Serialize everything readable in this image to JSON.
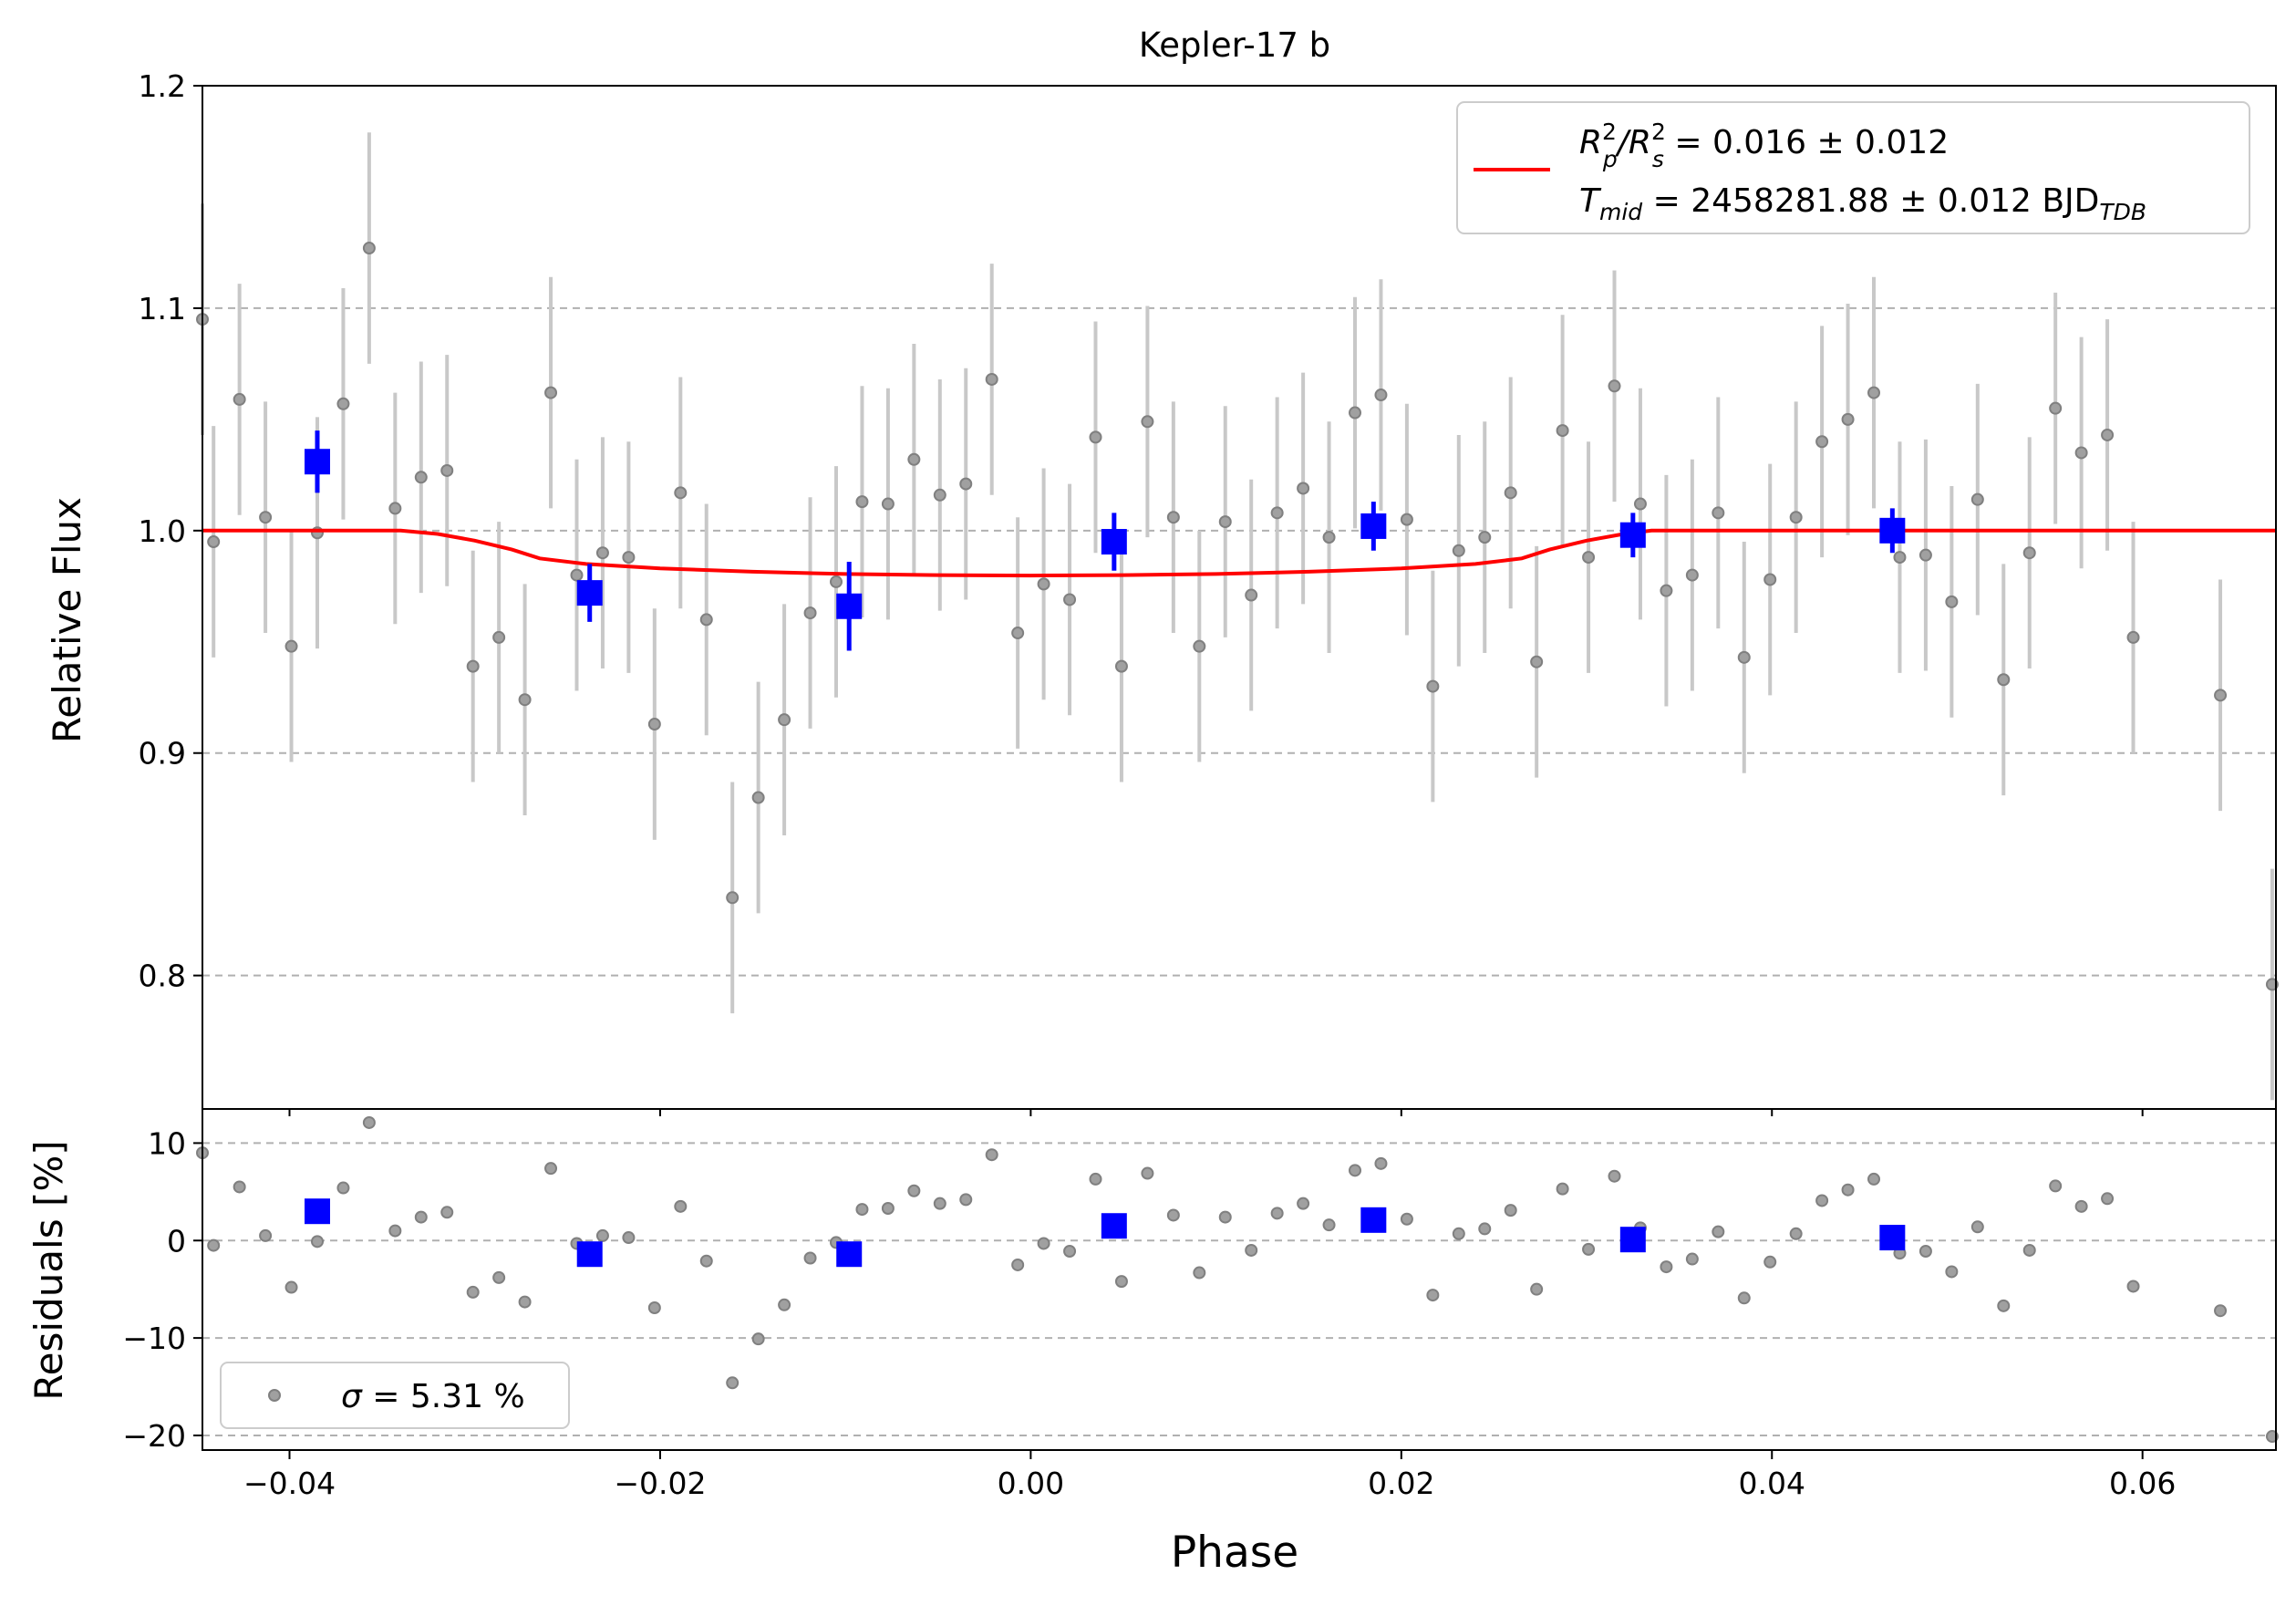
{
  "chart_data": [
    {
      "type": "scatter",
      "panel": "main",
      "title": "Kepler-17 b",
      "xlabel": "",
      "ylabel": "Relative Flux",
      "xlim": [
        -0.0447,
        0.0672
      ],
      "ylim": [
        0.74,
        1.2
      ],
      "xticks": [
        -0.04,
        -0.02,
        0.0,
        0.02,
        0.04,
        0.06
      ],
      "yticks": [
        0.8,
        0.9,
        1.0,
        1.1,
        1.2
      ],
      "ytick_labels": [
        "0.8",
        "0.9",
        "1.0",
        "1.1",
        "1.2"
      ],
      "grid": "y dashed",
      "legend_position": "top-right",
      "legend": {
        "line1_main": "R",
        "line1_sup_a": "2",
        "line1_sub_a": "p",
        "line1_slash": "/R",
        "line1_sup_b": "2",
        "line1_sub_b": "s",
        "line1_value": " = 0.016 ± 0.012",
        "line2_main": "T",
        "line2_sub": "mid",
        "line2_value": " = 2458281.88 ± 0.012 BJD",
        "line2_unit_sub": "TDB"
      },
      "colors": {
        "data": "#808080",
        "errorbar": "#c8c8c8",
        "binned": "#0000ff",
        "model": "#ff0000",
        "grid": "#b0b0b0"
      },
      "series": [
        {
          "kind": "data",
          "x": [
            -0.0447,
            -0.0441,
            -0.0427,
            -0.0413,
            -0.0399,
            -0.0385,
            -0.0371,
            -0.0357,
            -0.0343,
            -0.0329,
            -0.0315,
            -0.0301,
            -0.0287,
            -0.0273,
            -0.0259,
            -0.0245,
            -0.0231,
            -0.0217,
            -0.0203,
            -0.0189,
            -0.0175,
            -0.0161,
            -0.0147,
            -0.0133,
            -0.0119,
            -0.0105,
            -0.0091,
            -0.0077,
            -0.0063,
            -0.0049,
            -0.0035,
            -0.0021,
            -0.0007,
            0.0007,
            0.0021,
            0.0035,
            0.0049,
            0.0063,
            0.0077,
            0.0091,
            0.0105,
            0.0119,
            0.0133,
            0.0147,
            0.0161,
            0.0175,
            0.0189,
            0.0203,
            0.0217,
            0.0231,
            0.0245,
            0.0259,
            0.0273,
            0.0287,
            0.0301,
            0.0315,
            0.0329,
            0.0343,
            0.0357,
            0.0371,
            0.0385,
            0.0399,
            0.0413,
            0.0427,
            0.0441,
            0.0455,
            0.0469,
            0.0483,
            0.0497,
            0.0511,
            0.0525,
            0.0539,
            0.0553,
            0.0567,
            0.0581,
            0.0595,
            0.0642,
            0.067
          ],
          "y": [
            1.095,
            0.995,
            1.059,
            1.006,
            0.948,
            0.999,
            1.057,
            1.127,
            1.01,
            1.024,
            1.027,
            0.939,
            0.952,
            0.924,
            1.062,
            0.98,
            0.99,
            0.988,
            0.913,
            1.017,
            0.96,
            0.835,
            0.88,
            0.915,
            0.963,
            0.977,
            1.013,
            1.012,
            1.032,
            1.016,
            1.021,
            1.068,
            0.954,
            0.976,
            0.969,
            1.042,
            0.939,
            1.049,
            1.006,
            0.948,
            1.004,
            0.971,
            1.008,
            1.019,
            0.997,
            1.053,
            1.061,
            1.005,
            0.93,
            0.991,
            0.997,
            1.017,
            0.941,
            1.045,
            0.988,
            1.065,
            1.012,
            0.973,
            0.98,
            1.008,
            0.943,
            0.978,
            1.006,
            1.04,
            1.05,
            1.062,
            0.988,
            0.989,
            0.968,
            1.014,
            0.933,
            0.99,
            1.055,
            1.035,
            1.043,
            0.952,
            0.926,
            0.796
          ],
          "err": 0.052
        },
        {
          "kind": "binned",
          "x": [
            -0.0385,
            -0.0238,
            -0.0098,
            0.0045,
            0.0185,
            0.0325,
            0.0465
          ],
          "y": [
            1.031,
            0.972,
            0.966,
            0.995,
            1.002,
            0.998,
            1.0
          ],
          "err": [
            0.014,
            0.013,
            0.02,
            0.013,
            0.011,
            0.01,
            0.01
          ]
        },
        {
          "kind": "model",
          "x": [
            -0.0447,
            -0.0368,
            -0.034,
            -0.032,
            -0.03,
            -0.028,
            -0.0265,
            -0.024,
            -0.02,
            -0.015,
            -0.01,
            -0.005,
            0.0,
            0.005,
            0.01,
            0.015,
            0.02,
            0.024,
            0.0265,
            0.028,
            0.03,
            0.032,
            0.0335,
            0.0672
          ],
          "y": [
            1.0,
            1.0,
            1.0,
            0.9985,
            0.9955,
            0.9915,
            0.9875,
            0.985,
            0.983,
            0.9815,
            0.9805,
            0.98,
            0.9798,
            0.98,
            0.9805,
            0.9815,
            0.983,
            0.985,
            0.9875,
            0.9915,
            0.9955,
            0.9985,
            1.0,
            1.0
          ]
        }
      ]
    },
    {
      "type": "scatter",
      "panel": "residuals",
      "xlabel": "Phase",
      "ylabel": "Residuals [%]",
      "xlim": [
        -0.0447,
        0.0672
      ],
      "ylim": [
        -21.5,
        13.5
      ],
      "xticks": [
        -0.04,
        -0.02,
        0.0,
        0.02,
        0.04,
        0.06
      ],
      "xtick_labels": [
        "−0.04",
        "−0.02",
        "0.00",
        "0.02",
        "0.04",
        "0.06"
      ],
      "yticks": [
        -20,
        -10,
        0,
        10
      ],
      "ytick_labels": [
        "−20",
        "−10",
        "0",
        "10"
      ],
      "grid": "y dashed",
      "legend_position": "bottom-left",
      "legend": {
        "sigma": "σ",
        "text": " = 5.31 %"
      },
      "series": [
        {
          "kind": "data",
          "x": [
            -0.0447,
            -0.0441,
            -0.0427,
            -0.0413,
            -0.0399,
            -0.0385,
            -0.0371,
            -0.0357,
            -0.0343,
            -0.0329,
            -0.0315,
            -0.0301,
            -0.0287,
            -0.0273,
            -0.0259,
            -0.0245,
            -0.0231,
            -0.0217,
            -0.0203,
            -0.0189,
            -0.0175,
            -0.0161,
            -0.0147,
            -0.0133,
            -0.0119,
            -0.0105,
            -0.0091,
            -0.0077,
            -0.0063,
            -0.0049,
            -0.0035,
            -0.0021,
            -0.0007,
            0.0007,
            0.0021,
            0.0035,
            0.0049,
            0.0063,
            0.0077,
            0.0091,
            0.0105,
            0.0119,
            0.0133,
            0.0147,
            0.0161,
            0.0175,
            0.0189,
            0.0203,
            0.0217,
            0.0231,
            0.0245,
            0.0259,
            0.0273,
            0.0287,
            0.0301,
            0.0315,
            0.0329,
            0.0343,
            0.0357,
            0.0371,
            0.0385,
            0.0399,
            0.0413,
            0.0427,
            0.0441,
            0.0455,
            0.0469,
            0.0483,
            0.0497,
            0.0511,
            0.0525,
            0.0539,
            0.0553,
            0.0567,
            0.0581,
            0.0595,
            0.0642,
            0.067
          ],
          "y": [
            9.0,
            -0.5,
            5.5,
            0.5,
            -4.8,
            -0.1,
            5.4,
            12.1,
            1.0,
            2.4,
            2.9,
            -5.3,
            -3.8,
            -6.3,
            7.4,
            -0.3,
            0.5,
            0.3,
            -6.9,
            3.5,
            -2.1,
            -14.6,
            -10.1,
            -6.6,
            -1.8,
            -0.2,
            3.2,
            3.3,
            5.1,
            3.8,
            4.2,
            8.8,
            -2.5,
            -0.3,
            -1.1,
            6.3,
            -4.2,
            6.9,
            2.6,
            -3.3,
            2.4,
            -1.0,
            2.8,
            3.8,
            1.6,
            7.2,
            7.9,
            2.2,
            -5.6,
            0.7,
            1.2,
            3.1,
            -5.0,
            5.3,
            -0.9,
            6.6,
            1.3,
            -2.7,
            -1.9,
            0.9,
            -5.9,
            -2.2,
            0.7,
            4.1,
            5.2,
            6.3,
            -1.3,
            -1.1,
            -3.2,
            1.4,
            -6.7,
            -1.0,
            5.6,
            3.5,
            4.3,
            -4.7,
            -7.2,
            -20.1
          ]
        },
        {
          "kind": "binned",
          "x": [
            -0.0385,
            -0.0238,
            -0.0098,
            0.0045,
            0.0185,
            0.0325,
            0.0465
          ],
          "y": [
            3.0,
            -1.4,
            -1.4,
            1.5,
            2.1,
            0.1,
            0.3
          ]
        }
      ]
    }
  ]
}
